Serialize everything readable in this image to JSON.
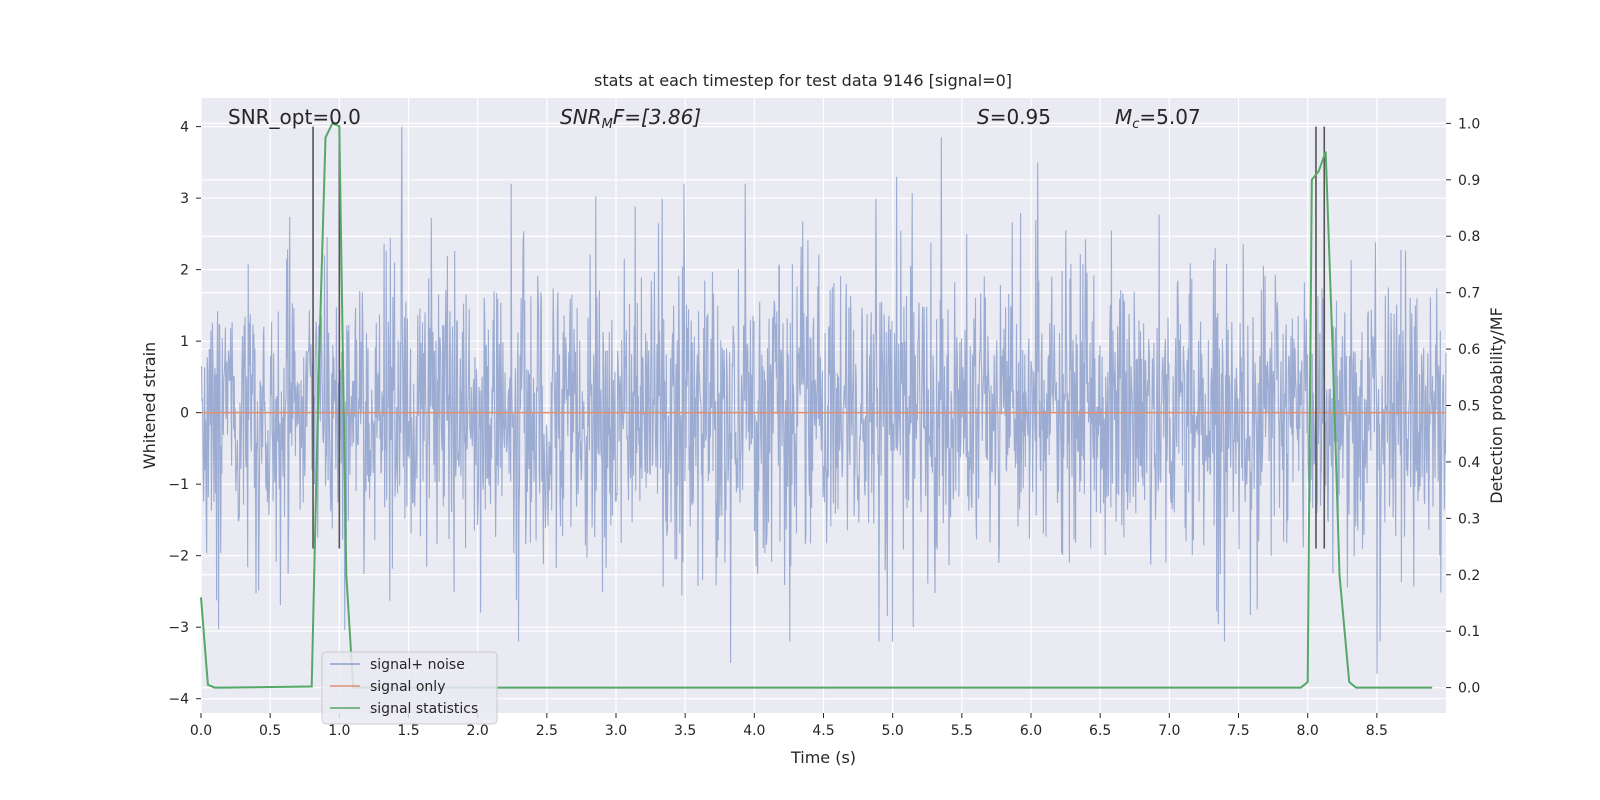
{
  "chart_data": {
    "type": "line",
    "title": "stats at each timestep for test data 9146 [signal=0]",
    "xlabel": "Time (s)",
    "ylabel": "Whitened strain",
    "y2label": "Detection probability/MF",
    "xlim": [
      0,
      9.0
    ],
    "ylim": [
      -4.2,
      4.4
    ],
    "y2lim": [
      -0.045,
      1.045
    ],
    "x_ticks": [
      "0.0",
      "0.5",
      "1.0",
      "1.5",
      "2.0",
      "2.5",
      "3.0",
      "3.5",
      "4.0",
      "4.5",
      "5.0",
      "5.5",
      "6.0",
      "6.5",
      "7.0",
      "7.5",
      "8.0",
      "8.5"
    ],
    "y_ticks": [
      "4",
      "3",
      "2",
      "1",
      "0",
      "−1",
      "−2",
      "−3",
      "−4"
    ],
    "y2_ticks": [
      "1.0",
      "0.9",
      "0.8",
      "0.7",
      "0.6",
      "0.5",
      "0.4",
      "0.3",
      "0.2",
      "0.1",
      "0.0"
    ],
    "grid": true,
    "legend_position": "lower-left",
    "annotations": {
      "snr_opt": "SNR_opt=0.0",
      "snr_mf_base": "SNR",
      "snr_mf_sub": "M",
      "snr_mf_rest": "F=[3.86]",
      "s_label": "S",
      "s_value": "=0.95",
      "mc_label": "M",
      "mc_sub": "c",
      "mc_value": "=5.07"
    },
    "vertical_markers": [
      0.81,
      1.0,
      8.06,
      8.12
    ],
    "series": [
      {
        "name": "signal+ noise",
        "color": "#8da0cb",
        "description_kind": "noise",
        "range": [
          -4.0,
          4.0
        ],
        "spikes": [
          [
            1.45,
            4.0
          ],
          [
            5.35,
            3.85
          ],
          [
            6.05,
            3.5
          ],
          [
            5.03,
            3.3
          ],
          [
            3.83,
            -3.5
          ],
          [
            8.5,
            -3.65
          ],
          [
            5.0,
            -3.2
          ],
          [
            4.9,
            -3.2
          ]
        ]
      },
      {
        "name": "signal only",
        "color": "#e08f6f",
        "x": [
          0,
          9.0
        ],
        "y": [
          0,
          0
        ]
      },
      {
        "name": "signal statistics",
        "color": "#55a868",
        "axis": "right",
        "x": [
          0,
          0.05,
          0.1,
          0.15,
          0.8,
          0.85,
          0.9,
          0.95,
          1.0,
          1.05,
          1.1,
          1.15,
          7.95,
          8.0,
          8.03,
          8.08,
          8.13,
          8.18,
          8.23,
          8.3,
          8.35,
          8.4,
          8.9
        ],
        "y": [
          0.16,
          0.005,
          0.0,
          0.0,
          0.002,
          0.55,
          0.975,
          1.0,
          0.995,
          0.2,
          0.0,
          0.0,
          0.0,
          0.01,
          0.9,
          0.915,
          0.95,
          0.6,
          0.2,
          0.01,
          0.0,
          0.0,
          0.0
        ]
      }
    ]
  }
}
